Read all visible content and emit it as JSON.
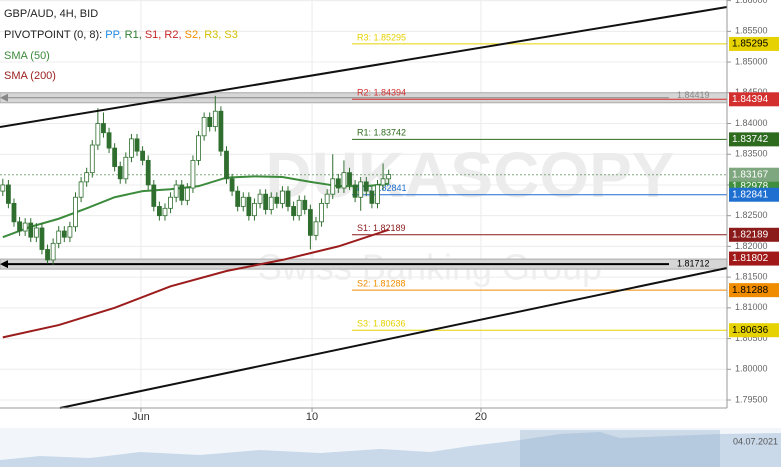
{
  "chart_data": {
    "type": "candlestick",
    "title": "GBP/AUD, 4H, BID",
    "indicator_label": "PIVOTPOINT (0, 8):",
    "indicator_names": [
      {
        "text": "PP,",
        "color": "#1e88e5"
      },
      {
        "text": "R1,",
        "color": "#2e7d32"
      },
      {
        "text": "S1,",
        "color": "#c62828"
      },
      {
        "text": "R2,",
        "color": "#c62828"
      },
      {
        "text": "S2,",
        "color": "#ef8c00"
      },
      {
        "text": "R3,",
        "color": "#d4c000"
      },
      {
        "text": "S3",
        "color": "#d4c000"
      }
    ],
    "watermark": "DUKASCOPY",
    "watermark_sub": "Swiss Banking Group",
    "date_label": "04.07.2021",
    "xlim": [
      -0.5,
      129.5
    ],
    "ylim": [
      1.7937,
      1.8601
    ],
    "xticks": [
      {
        "value": 24.7,
        "label": "Jun"
      },
      {
        "value": 55.3,
        "label": "10"
      },
      {
        "value": 85.5,
        "label": "20"
      }
    ],
    "yticks": [
      {
        "value": 1.795,
        "label": "1.79500"
      },
      {
        "value": 1.8,
        "label": "1.80000"
      },
      {
        "value": 1.805,
        "label": "1.80500"
      },
      {
        "value": 1.81,
        "label": "1.81000"
      },
      {
        "value": 1.815,
        "label": "1.81500"
      },
      {
        "value": 1.82,
        "label": "1.82000"
      },
      {
        "value": 1.825,
        "label": "1.82500"
      },
      {
        "value": 1.83,
        "label": "1.83000"
      },
      {
        "value": 1.835,
        "label": "1.83500"
      },
      {
        "value": 1.84,
        "label": "1.84000"
      },
      {
        "value": 1.845,
        "label": "1.84500"
      },
      {
        "value": 1.85,
        "label": "1.85000"
      },
      {
        "value": 1.855,
        "label": "1.85500"
      },
      {
        "value": 1.86,
        "label": "1.86000"
      }
    ],
    "grid": true,
    "up_color": "#ffffff",
    "down_color": "#2f6e2f",
    "ohlc": [
      [
        1.829,
        1.831,
        1.8282,
        1.83
      ],
      [
        1.83,
        1.8308,
        1.8262,
        1.827
      ],
      [
        1.827,
        1.8278,
        1.8232,
        1.824
      ],
      [
        1.824,
        1.8248,
        1.8217,
        1.8225
      ],
      [
        1.8225,
        1.8246,
        1.8217,
        1.8238
      ],
      [
        1.8238,
        1.8246,
        1.8207,
        1.8215
      ],
      [
        1.8215,
        1.8238,
        1.8207,
        1.823
      ],
      [
        1.823,
        1.8238,
        1.8187,
        1.8195
      ],
      [
        1.8195,
        1.8203,
        1.8172,
        1.8178
      ],
      [
        1.8178,
        1.8213,
        1.817,
        1.8205
      ],
      [
        1.8205,
        1.8233,
        1.8197,
        1.8225
      ],
      [
        1.8225,
        1.8233,
        1.8207,
        1.8215
      ],
      [
        1.8215,
        1.824,
        1.8207,
        1.8232
      ],
      [
        1.8232,
        1.8288,
        1.8224,
        1.828
      ],
      [
        1.828,
        1.8313,
        1.8272,
        1.8305
      ],
      [
        1.8305,
        1.8328,
        1.8297,
        1.832
      ],
      [
        1.832,
        1.8373,
        1.8312,
        1.8365
      ],
      [
        1.8365,
        1.8425,
        1.8357,
        1.84
      ],
      [
        1.84,
        1.8418,
        1.8377,
        1.8385
      ],
      [
        1.8385,
        1.8393,
        1.8352,
        1.836
      ],
      [
        1.836,
        1.8368,
        1.8322,
        1.833
      ],
      [
        1.833,
        1.8338,
        1.8302,
        1.831
      ],
      [
        1.831,
        1.8353,
        1.8302,
        1.8345
      ],
      [
        1.8345,
        1.8383,
        1.8337,
        1.8375
      ],
      [
        1.8375,
        1.8383,
        1.8347,
        1.8355
      ],
      [
        1.8355,
        1.8363,
        1.8332,
        1.834
      ],
      [
        1.834,
        1.8348,
        1.8292,
        1.83
      ],
      [
        1.83,
        1.8308,
        1.8257,
        1.8265
      ],
      [
        1.8265,
        1.8273,
        1.8242,
        1.825
      ],
      [
        1.825,
        1.827,
        1.8242,
        1.8262
      ],
      [
        1.8262,
        1.8288,
        1.8254,
        1.828
      ],
      [
        1.828,
        1.8308,
        1.8272,
        1.83
      ],
      [
        1.83,
        1.8308,
        1.8267,
        1.8275
      ],
      [
        1.8275,
        1.8303,
        1.8267,
        1.8295
      ],
      [
        1.8295,
        1.8348,
        1.8287,
        1.834
      ],
      [
        1.834,
        1.8388,
        1.8332,
        1.838
      ],
      [
        1.838,
        1.8418,
        1.8372,
        1.841
      ],
      [
        1.841,
        1.8418,
        1.8387,
        1.8395
      ],
      [
        1.8395,
        1.8445,
        1.8387,
        1.842
      ],
      [
        1.842,
        1.8428,
        1.8347,
        1.8355
      ],
      [
        1.8355,
        1.8363,
        1.8302,
        1.831
      ],
      [
        1.831,
        1.8318,
        1.8282,
        1.829
      ],
      [
        1.829,
        1.8298,
        1.8257,
        1.8265
      ],
      [
        1.8265,
        1.8288,
        1.8257,
        1.828
      ],
      [
        1.828,
        1.8288,
        1.8242,
        1.825
      ],
      [
        1.825,
        1.8278,
        1.8242,
        1.827
      ],
      [
        1.827,
        1.8293,
        1.8262,
        1.8285
      ],
      [
        1.8285,
        1.8293,
        1.8252,
        1.826
      ],
      [
        1.826,
        1.8288,
        1.8252,
        1.828
      ],
      [
        1.828,
        1.8288,
        1.8262,
        1.827
      ],
      [
        1.827,
        1.8298,
        1.8262,
        1.829
      ],
      [
        1.829,
        1.8298,
        1.8257,
        1.8265
      ],
      [
        1.8265,
        1.8273,
        1.8242,
        1.825
      ],
      [
        1.825,
        1.8283,
        1.8242,
        1.8275
      ],
      [
        1.8275,
        1.8283,
        1.8252,
        1.826
      ],
      [
        1.826,
        1.8268,
        1.8195,
        1.8218
      ],
      [
        1.8218,
        1.8248,
        1.821,
        1.824
      ],
      [
        1.824,
        1.8278,
        1.8232,
        1.827
      ],
      [
        1.827,
        1.8293,
        1.8262,
        1.8285
      ],
      [
        1.8285,
        1.835,
        1.8277,
        1.831
      ],
      [
        1.831,
        1.8318,
        1.8287,
        1.8295
      ],
      [
        1.8295,
        1.834,
        1.8287,
        1.832
      ],
      [
        1.832,
        1.8328,
        1.8292,
        1.83
      ],
      [
        1.83,
        1.8308,
        1.8272,
        1.828
      ],
      [
        1.828,
        1.8313,
        1.8258,
        1.8305
      ],
      [
        1.8305,
        1.8313,
        1.8282,
        1.829
      ],
      [
        1.829,
        1.8298,
        1.8262,
        1.827
      ],
      [
        1.827,
        1.8308,
        1.8262,
        1.83
      ],
      [
        1.83,
        1.8335,
        1.8292,
        1.831
      ],
      [
        1.831,
        1.8325,
        1.8302,
        1.8317
      ]
    ],
    "series": [
      {
        "name": "SMA (50)",
        "color": "#3d8b3d",
        "x": [
          0,
          5,
          10,
          15,
          20,
          25,
          30,
          35,
          40,
          45,
          50,
          55,
          60,
          65,
          69
        ],
        "values": [
          1.8215,
          1.8232,
          1.8245,
          1.8262,
          1.828,
          1.829,
          1.8293,
          1.8298,
          1.8312,
          1.8314,
          1.8313,
          1.8305,
          1.8298,
          1.8298,
          1.8302
        ]
      },
      {
        "name": "SMA (200)",
        "color": "#9b1c1c",
        "x": [
          0,
          10,
          20,
          30,
          40,
          50,
          60,
          69
        ],
        "values": [
          1.8052,
          1.8072,
          1.81,
          1.8135,
          1.816,
          1.8178,
          1.82,
          1.8227
        ]
      }
    ],
    "levels": [
      {
        "label": "R3: 1.85295",
        "value": 1.85295,
        "color": "#e6d200",
        "text_color": "#000000"
      },
      {
        "label": "R2: 1.84394",
        "value": 1.84394,
        "color": "#d32f2f",
        "text_color": "#ffffff"
      },
      {
        "label": "R1: 1.83742",
        "value": 1.83742,
        "color": "#2e6b1e",
        "text_color": "#ffffff"
      },
      {
        "label": "PP: 1.82841",
        "value": 1.82841,
        "color": "#1e6fd0",
        "text_color": "#ffffff"
      },
      {
        "label": "S1: 1.82189",
        "value": 1.82189,
        "color": "#8b1a1a",
        "text_color": "#ffffff"
      },
      {
        "label": "S2: 1.81288",
        "value": 1.81288,
        "color": "#f08c00",
        "text_color": "#000000"
      },
      {
        "label": "S3: 1.80636",
        "value": 1.80636,
        "color": "#e6d200",
        "text_color": "#000000"
      }
    ],
    "price_tags": [
      {
        "value": 1.83167,
        "color": "#7fa77f"
      },
      {
        "value": 1.82978,
        "color": "#3f8f3f"
      },
      {
        "value": 1.81802,
        "color": "#a01818"
      }
    ],
    "hlines": [
      {
        "value": 1.84419,
        "color": "#888888"
      },
      {
        "value": 1.81712,
        "color": "#000000"
      }
    ]
  }
}
